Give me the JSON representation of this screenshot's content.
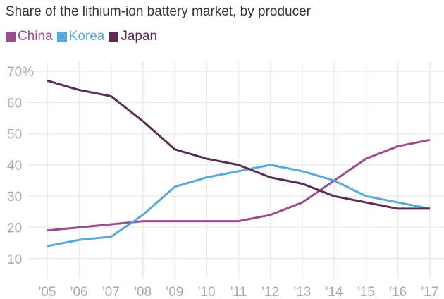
{
  "chart_data": {
    "type": "line",
    "title": "Share of the lithium-ion battery market, by producer",
    "categories": [
      "'05",
      "'06",
      "'07",
      "'08",
      "'09",
      "'10",
      "'11",
      "'12",
      "'13",
      "'14",
      "'15",
      "'16",
      "'17"
    ],
    "series": [
      {
        "name": "China",
        "color": "#9b4f8a",
        "values": [
          19,
          20,
          21,
          22,
          22,
          22,
          22,
          24,
          28,
          35,
          42,
          46,
          48
        ]
      },
      {
        "name": "Korea",
        "color": "#5aa9dc",
        "values": [
          14,
          16,
          17,
          24,
          33,
          36,
          38,
          40,
          38,
          35,
          30,
          28,
          26
        ]
      },
      {
        "name": "Japan",
        "color": "#5c2d52",
        "values": [
          67,
          64,
          62,
          54,
          45,
          42,
          40,
          36,
          34,
          30,
          28,
          26,
          26
        ]
      }
    ],
    "yticks": [
      "70%",
      "60",
      "50",
      "40",
      "30",
      "20",
      "10"
    ],
    "ytick_values": [
      70,
      60,
      50,
      40,
      30,
      20,
      10
    ],
    "ylim": [
      10,
      70
    ],
    "grid": true,
    "legend": "top-left"
  }
}
